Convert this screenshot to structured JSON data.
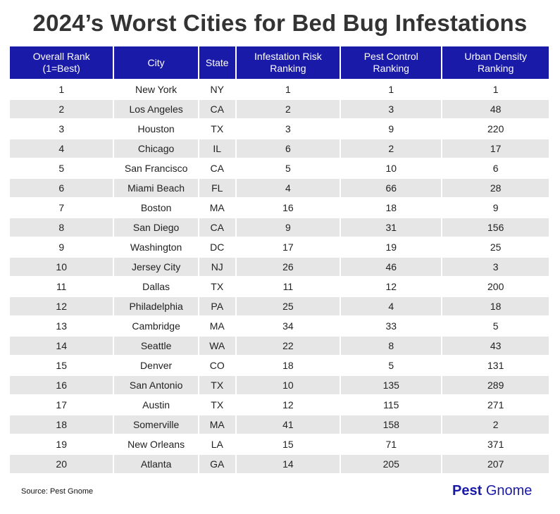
{
  "title": "2024’s Worst Cities for Bed Bug Infestations",
  "chart_data": {
    "type": "table",
    "title": "2024’s Worst Cities for Bed Bug Infestations",
    "columns": [
      "Overall Rank\n(1=Best)",
      "City",
      "State",
      "Infestation Risk\nRanking",
      "Pest Control\nRanking",
      "Urban Density\nRanking"
    ],
    "rows": [
      [
        "1",
        "New York",
        "NY",
        "1",
        "1",
        "1"
      ],
      [
        "2",
        "Los Angeles",
        "CA",
        "2",
        "3",
        "48"
      ],
      [
        "3",
        "Houston",
        "TX",
        "3",
        "9",
        "220"
      ],
      [
        "4",
        "Chicago",
        "IL",
        "6",
        "2",
        "17"
      ],
      [
        "5",
        "San Francisco",
        "CA",
        "5",
        "10",
        "6"
      ],
      [
        "6",
        "Miami Beach",
        "FL",
        "4",
        "66",
        "28"
      ],
      [
        "7",
        "Boston",
        "MA",
        "16",
        "18",
        "9"
      ],
      [
        "8",
        "San Diego",
        "CA",
        "9",
        "31",
        "156"
      ],
      [
        "9",
        "Washington",
        "DC",
        "17",
        "19",
        "25"
      ],
      [
        "10",
        "Jersey City",
        "NJ",
        "26",
        "46",
        "3"
      ],
      [
        "11",
        "Dallas",
        "TX",
        "11",
        "12",
        "200"
      ],
      [
        "12",
        "Philadelphia",
        "PA",
        "25",
        "4",
        "18"
      ],
      [
        "13",
        "Cambridge",
        "MA",
        "34",
        "33",
        "5"
      ],
      [
        "14",
        "Seattle",
        "WA",
        "22",
        "8",
        "43"
      ],
      [
        "15",
        "Denver",
        "CO",
        "18",
        "5",
        "131"
      ],
      [
        "16",
        "San Antonio",
        "TX",
        "10",
        "135",
        "289"
      ],
      [
        "17",
        "Austin",
        "TX",
        "12",
        "115",
        "271"
      ],
      [
        "18",
        "Somerville",
        "MA",
        "41",
        "158",
        "2"
      ],
      [
        "19",
        "New Orleans",
        "LA",
        "15",
        "71",
        "371"
      ],
      [
        "20",
        "Atlanta",
        "GA",
        "14",
        "205",
        "207"
      ]
    ]
  },
  "footer": {
    "source": "Source: Pest Gnome",
    "brand_part1": "Pest",
    "brand_part2": "Gnome"
  },
  "colors": {
    "header_bg": "#1a1aa8",
    "header_text": "#ffffff",
    "stripe": "#e6e6e6",
    "brand": "#1a1aa8"
  }
}
